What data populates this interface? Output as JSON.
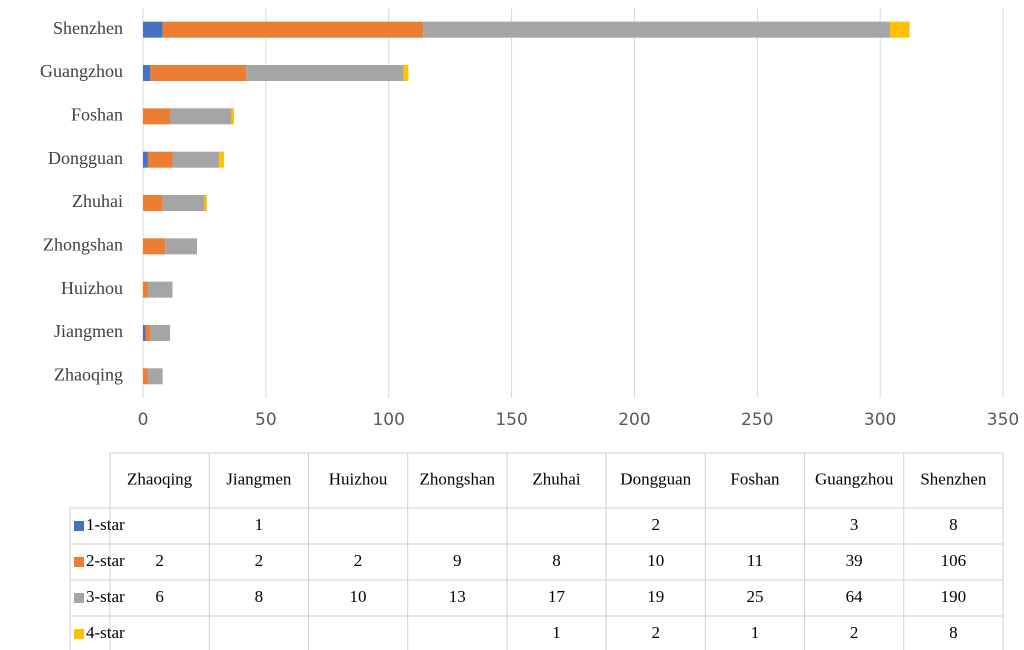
{
  "chart_data": {
    "type": "bar",
    "orientation": "horizontal",
    "stacked": true,
    "categories": [
      "Zhaoqing",
      "Jiangmen",
      "Huizhou",
      "Zhongshan",
      "Zhuhai",
      "Dongguan",
      "Foshan",
      "Guangzhou",
      "Shenzhen"
    ],
    "series": [
      {
        "name": "1-star",
        "color": "#4472c4",
        "values": [
          null,
          1,
          null,
          null,
          null,
          2,
          null,
          3,
          8
        ]
      },
      {
        "name": "2-star",
        "color": "#ed7d31",
        "values": [
          2,
          2,
          2,
          9,
          8,
          10,
          11,
          39,
          106
        ]
      },
      {
        "name": "3-star",
        "color": "#a5a5a5",
        "values": [
          6,
          8,
          10,
          13,
          17,
          19,
          25,
          64,
          190
        ]
      },
      {
        "name": "4-star",
        "color": "#ffc000",
        "values": [
          null,
          null,
          null,
          null,
          1,
          2,
          1,
          2,
          8
        ]
      }
    ],
    "xlim": [
      0,
      350
    ],
    "xticks": [
      0,
      50,
      100,
      150,
      200,
      250,
      300,
      350
    ],
    "grid": true,
    "data_table": true
  }
}
